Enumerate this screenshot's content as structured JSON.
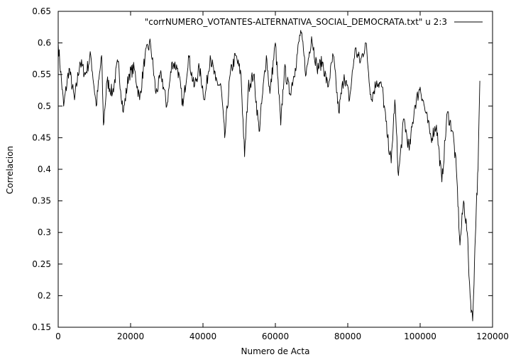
{
  "chart_data": {
    "type": "line",
    "xlabel": "Numero de Acta",
    "ylabel": "Correlacion",
    "xlim": [
      0,
      120000
    ],
    "ylim": [
      0.15,
      0.65
    ],
    "x_ticks": [
      "0",
      "20000",
      "40000",
      "60000",
      "80000",
      "100000",
      "120000"
    ],
    "y_ticks": [
      "0.15",
      "0.2",
      "0.25",
      "0.3",
      "0.35",
      "0.4",
      "0.45",
      "0.5",
      "0.55",
      "0.6",
      "0.65"
    ],
    "grid": false,
    "legend_position": "top-right",
    "series": [
      {
        "name": "\"corrNUMERO_VOTANTES-ALTERNATIVA_SOCIAL_DEMOCRATA.txt\" u 2:3",
        "color": "#000000",
        "x": [
          0,
          1500,
          3000,
          4500,
          6000,
          7500,
          9000,
          10500,
          12000,
          12500,
          13500,
          15000,
          16500,
          18000,
          19500,
          21000,
          22500,
          24000,
          25500,
          27000,
          28500,
          30000,
          31500,
          33000,
          34500,
          36000,
          37500,
          39000,
          40500,
          42000,
          43500,
          45000,
          46000,
          47500,
          49000,
          50500,
          51500,
          52500,
          54000,
          55500,
          56500,
          57500,
          58500,
          60000,
          61500,
          62500,
          64000,
          65500,
          67000,
          68500,
          70000,
          71500,
          73000,
          74500,
          76000,
          77500,
          79000,
          80500,
          82000,
          83500,
          85000,
          86500,
          88000,
          89500,
          91000,
          92000,
          93000,
          94000,
          95500,
          97000,
          98500,
          100000,
          101500,
          103000,
          104500,
          106000,
          107500,
          109000,
          110000,
          111000,
          112000,
          113000,
          113800,
          114500,
          115000,
          115500,
          116000,
          116500
        ],
        "y": [
          0.6,
          0.5,
          0.56,
          0.51,
          0.57,
          0.55,
          0.58,
          0.5,
          0.58,
          0.47,
          0.54,
          0.52,
          0.57,
          0.49,
          0.55,
          0.56,
          0.51,
          0.58,
          0.6,
          0.52,
          0.55,
          0.5,
          0.57,
          0.56,
          0.5,
          0.58,
          0.53,
          0.56,
          0.51,
          0.58,
          0.54,
          0.53,
          0.45,
          0.55,
          0.58,
          0.55,
          0.42,
          0.53,
          0.55,
          0.46,
          0.52,
          0.58,
          0.52,
          0.6,
          0.47,
          0.56,
          0.52,
          0.56,
          0.62,
          0.55,
          0.61,
          0.56,
          0.57,
          0.53,
          0.58,
          0.49,
          0.55,
          0.51,
          0.59,
          0.57,
          0.6,
          0.51,
          0.54,
          0.53,
          0.45,
          0.41,
          0.51,
          0.39,
          0.48,
          0.43,
          0.5,
          0.53,
          0.49,
          0.45,
          0.47,
          0.38,
          0.49,
          0.46,
          0.4,
          0.28,
          0.35,
          0.3,
          0.2,
          0.16,
          0.25,
          0.34,
          0.4,
          0.54
        ]
      }
    ]
  }
}
